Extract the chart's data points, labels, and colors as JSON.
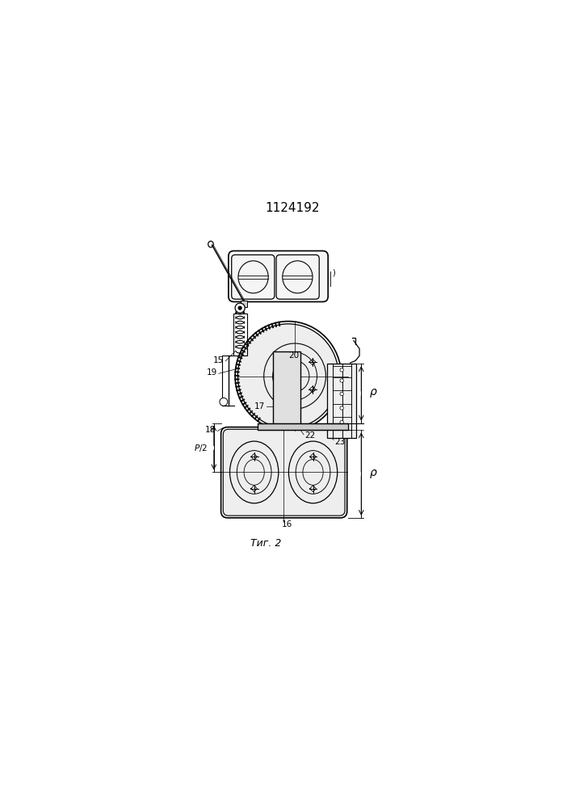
{
  "title": "1124192",
  "bg_color": "#ffffff",
  "line_color": "#000000",
  "fig_caption": "Τиг. 2"
}
